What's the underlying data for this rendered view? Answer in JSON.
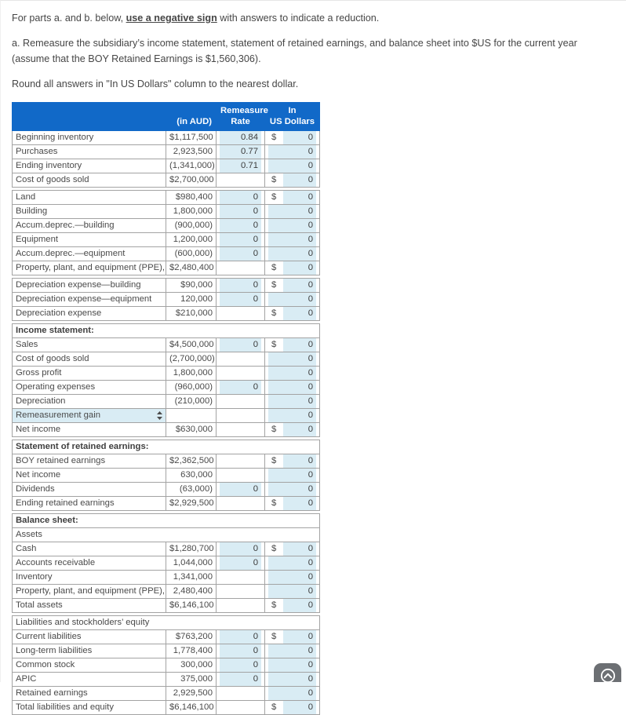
{
  "page": {
    "instruction_prefix": "For parts a. and b. below, ",
    "instruction_bold": "use a negative sign",
    "instruction_suffix": " with answers to indicate a reduction.",
    "paragraph_a": "a. Remeasure the subsidiary’s income statement, statement of retained earnings, and balance sheet into $US for the current year (assume that the BOY Retained Earnings is $1,560,306).",
    "rounding_note": "Round all answers in \"In US Dollars\" column to the nearest dollar."
  },
  "colors": {
    "header_bg": "#1169c8",
    "input_bg": "#d9ecf4"
  },
  "table": {
    "header": {
      "label": "",
      "aud": "(in AUD)",
      "rate": "Remeasure\nRate",
      "usd": "In\nUS Dollars"
    },
    "rows": [
      {
        "t": "data",
        "label": "Beginning inventory",
        "aud": "$1,117,500",
        "rate": "0.84",
        "usd": "0",
        "usd_dollar": true
      },
      {
        "t": "data",
        "label": "Purchases",
        "aud": "2,923,500",
        "rate": "0.77",
        "usd": "0"
      },
      {
        "t": "data",
        "label": "Ending inventory",
        "aud": "(1,341,000)",
        "rate": "0.71",
        "usd": "0",
        "aud_line": true,
        "usd_line": true
      },
      {
        "t": "data",
        "label": "Cost of goods sold",
        "aud": "$2,700,000",
        "rate": null,
        "usd": "0",
        "usd_dollar": true,
        "total": true
      },
      {
        "t": "gap"
      },
      {
        "t": "data",
        "label": "Land",
        "aud": "$980,400",
        "rate": "0",
        "usd": "0",
        "usd_dollar": true
      },
      {
        "t": "data",
        "label": "Building",
        "aud": "1,800,000",
        "rate": "0",
        "usd": "0"
      },
      {
        "t": "data",
        "label": "Accum.deprec.—building",
        "aud": "(900,000)",
        "rate": "0",
        "usd": "0"
      },
      {
        "t": "data",
        "label": "Equipment",
        "aud": "1,200,000",
        "rate": "0",
        "usd": "0"
      },
      {
        "t": "data",
        "label": "Accum.deprec.—equipment",
        "aud": "(600,000)",
        "rate": "0",
        "usd": "0",
        "aud_line": true,
        "usd_line": true
      },
      {
        "t": "data",
        "label": "Property, plant, and equipment (PPE), net",
        "aud": "$2,480,400",
        "rate": null,
        "usd": "0",
        "usd_dollar": true,
        "total": true
      },
      {
        "t": "gap"
      },
      {
        "t": "data",
        "label": "Depreciation expense—building",
        "aud": "$90,000",
        "rate": "0",
        "usd": "0",
        "usd_dollar": true
      },
      {
        "t": "data",
        "label": "Depreciation expense—equipment",
        "aud": "120,000",
        "rate": "0",
        "usd": "0",
        "aud_line": true,
        "usd_line": true
      },
      {
        "t": "data",
        "label": "Depreciation expense",
        "aud": "$210,000",
        "rate": null,
        "usd": "0",
        "usd_dollar": true,
        "total": true
      },
      {
        "t": "gap"
      },
      {
        "t": "section",
        "label": "Income statement:"
      },
      {
        "t": "data",
        "label": "Sales",
        "aud": "$4,500,000",
        "rate": "0",
        "usd": "0",
        "usd_dollar": true
      },
      {
        "t": "data",
        "label": "Cost of goods sold",
        "aud": "(2,700,000)",
        "rate": null,
        "usd": "0",
        "aud_line": true
      },
      {
        "t": "data",
        "label": "Gross profit",
        "aud": "1,800,000",
        "rate": null,
        "usd": "0"
      },
      {
        "t": "data",
        "label": "Operating expenses",
        "aud": "(960,000)",
        "rate": "0",
        "usd": "0"
      },
      {
        "t": "data",
        "label": "Depreciation",
        "aud": "(210,000)",
        "rate": null,
        "usd": "0",
        "aud_line": true
      },
      {
        "t": "data",
        "label": "Remeasurement gain",
        "dropdown": true,
        "aud": "",
        "rate": null,
        "usd": "0",
        "usd_line": true
      },
      {
        "t": "data",
        "label": "Net income",
        "aud": "$630,000",
        "rate": null,
        "usd": "0",
        "usd_dollar": true,
        "total": true
      },
      {
        "t": "gap"
      },
      {
        "t": "section",
        "label": "Statement of retained earnings:"
      },
      {
        "t": "data",
        "label": "BOY retained earnings",
        "aud": "$2,362,500",
        "rate": null,
        "usd": "0",
        "usd_dollar": true
      },
      {
        "t": "data",
        "label": "Net income",
        "aud": "630,000",
        "rate": null,
        "usd": "0"
      },
      {
        "t": "data",
        "label": "Dividends",
        "aud": "(63,000)",
        "rate": "0",
        "usd": "0",
        "aud_line": true,
        "usd_line": true
      },
      {
        "t": "data",
        "label": "Ending retained earnings",
        "aud": "$2,929,500",
        "rate": null,
        "usd": "0",
        "usd_dollar": true,
        "total": true
      },
      {
        "t": "gap"
      },
      {
        "t": "section",
        "label": "Balance sheet:"
      },
      {
        "t": "plain",
        "label": "Assets"
      },
      {
        "t": "data",
        "label": "Cash",
        "aud": "$1,280,700",
        "rate": "0",
        "usd": "0",
        "usd_dollar": true
      },
      {
        "t": "data",
        "label": "Accounts receivable",
        "aud": "1,044,000",
        "rate": "0",
        "usd": "0"
      },
      {
        "t": "data",
        "label": "Inventory",
        "aud": "1,341,000",
        "rate": null,
        "usd": "0"
      },
      {
        "t": "data",
        "label": "Property, plant, and equipment (PPE), net",
        "aud": "2,480,400",
        "rate": null,
        "usd": "0",
        "aud_line": true,
        "usd_line": true
      },
      {
        "t": "data",
        "label": "Total assets",
        "aud": "$6,146,100",
        "rate": null,
        "usd": "0",
        "usd_dollar": true,
        "total": true
      },
      {
        "t": "gap"
      },
      {
        "t": "plain",
        "label": "Liabilities and stockholders’ equity"
      },
      {
        "t": "data",
        "label": "Current liabilities",
        "aud": "$763,200",
        "rate": "0",
        "usd": "0",
        "usd_dollar": true
      },
      {
        "t": "data",
        "label": "Long-term liabilities",
        "aud": "1,778,400",
        "rate": "0",
        "usd": "0"
      },
      {
        "t": "data",
        "label": "Common stock",
        "aud": "300,000",
        "rate": "0",
        "usd": "0"
      },
      {
        "t": "data",
        "label": "APIC",
        "aud": "375,000",
        "rate": "0",
        "usd": "0"
      },
      {
        "t": "data",
        "label": "Retained earnings",
        "aud": "2,929,500",
        "rate": null,
        "usd": "0",
        "aud_line": true,
        "usd_line": true
      },
      {
        "t": "data",
        "label": "Total liabilities and equity",
        "aud": "$6,146,100",
        "rate": null,
        "usd": "0",
        "usd_dollar": true,
        "total": true
      }
    ]
  },
  "scroll_top_button": {
    "icon": "arrow-up-circle-icon"
  }
}
